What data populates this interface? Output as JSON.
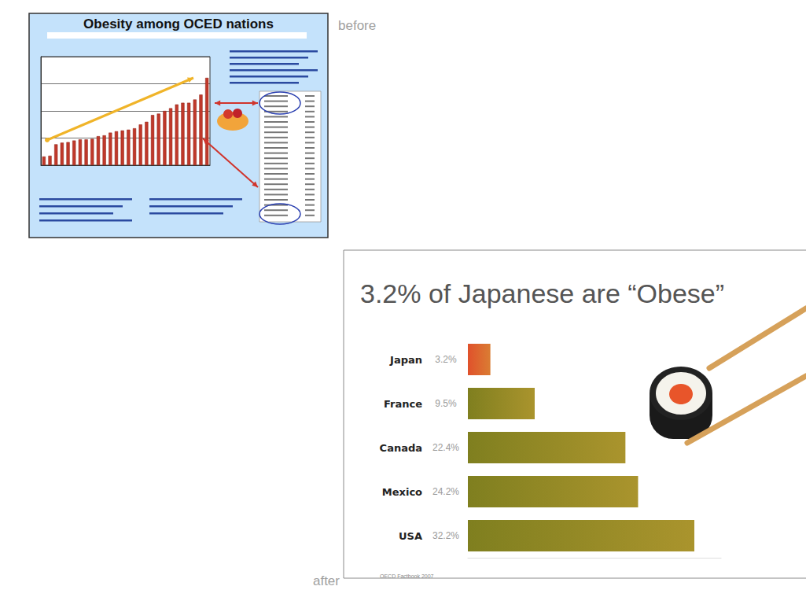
{
  "chart_data": [
    {
      "type": "bar",
      "title": "Obesity among OCED nations",
      "annotation": "before",
      "categories": [
        null,
        null,
        null,
        null,
        null,
        null,
        null,
        null,
        null,
        null,
        null,
        null,
        null,
        null,
        null,
        null,
        null,
        null,
        null,
        null,
        null,
        null,
        null,
        null,
        null,
        null,
        null,
        null
      ],
      "values": [
        3.2,
        3.5,
        7.7,
        8.3,
        8.5,
        9.1,
        9.5,
        9.5,
        9.7,
        10.7,
        11.0,
        12.0,
        12.5,
        12.8,
        13.1,
        13.6,
        15.0,
        16.0,
        18.5,
        19.0,
        20.0,
        21.0,
        22.4,
        23.0,
        23.0,
        24.2,
        26.0,
        32.2
      ],
      "color": "#c0392b",
      "ylim": [
        0,
        40
      ],
      "yticks": [
        0,
        10,
        20,
        30,
        40
      ],
      "grid": true,
      "tick_labels": false
    },
    {
      "type": "bar",
      "title": "3.2% of Japanese are “Obese”",
      "annotation": "after",
      "source": "OECD Factbook 2007",
      "orientation": "horizontal",
      "categories": [
        "Japan",
        "France",
        "Canada",
        "Mexico",
        "USA"
      ],
      "values": [
        3.2,
        9.5,
        22.4,
        24.2,
        32.2
      ],
      "value_labels": [
        "3.2%",
        "9.5%",
        "22.4%",
        "24.2%",
        "32.2%"
      ],
      "data_labels": true,
      "colors": [
        "#e0512b",
        "#7f7f1f",
        "#7f7f1f",
        "#7f7f1f",
        "#7f7f1f"
      ],
      "xlim": [
        0,
        36
      ],
      "xticks": [],
      "grid": false,
      "tick_labels": "y"
    }
  ]
}
